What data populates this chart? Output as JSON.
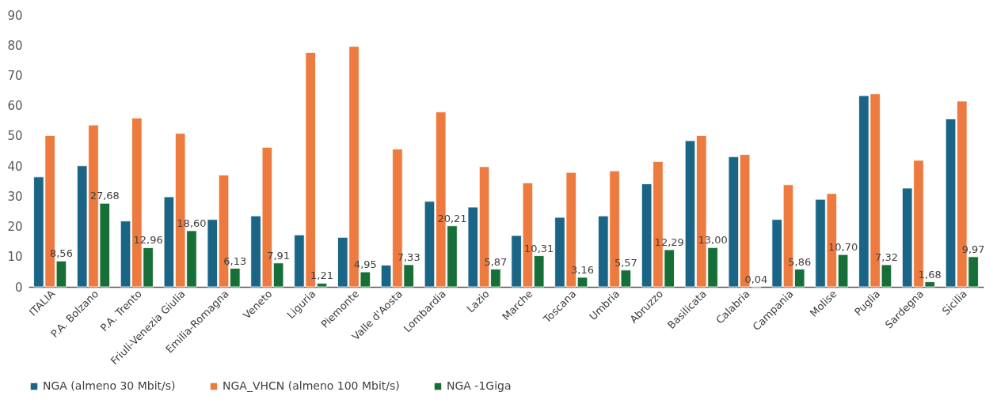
{
  "chart_data": {
    "type": "bar",
    "categories": [
      "ITALIA",
      "P.A. Bolzano",
      "P.A. Trento",
      "Friuli-Venezia Giulia",
      "Emilia-Romagna",
      "Veneto",
      "Liguria",
      "Piemonte",
      "Valle d'Aosta",
      "Lombardia",
      "Lazio",
      "Marche",
      "Toscana",
      "Umbria",
      "Abruzzo",
      "Basilicata",
      "Calabria",
      "Campania",
      "Molise",
      "Puglia",
      "Sardegna",
      "Sicilia"
    ],
    "series": [
      {
        "name": "NGA (almeno 30 Mbit/s)",
        "color": "#1a6585",
        "values": [
          36.4,
          40.1,
          21.8,
          29.8,
          22.3,
          23.5,
          17.2,
          16.4,
          7.2,
          28.3,
          26.4,
          17.0,
          23.0,
          23.5,
          34.1,
          48.4,
          43.1,
          22.3,
          29.0,
          63.3,
          32.7,
          55.6
        ]
      },
      {
        "name": "NGA_VHCN (almeno 100 Mbit/s)",
        "color": "#ed7a3e",
        "values": [
          50.1,
          53.6,
          55.9,
          50.8,
          37.0,
          46.2,
          77.6,
          79.6,
          45.6,
          57.9,
          39.8,
          34.4,
          37.9,
          38.4,
          41.5,
          50.1,
          43.8,
          33.8,
          30.9,
          63.9,
          41.9,
          61.5
        ]
      },
      {
        "name": "NGA -1Giga",
        "color": "#176f38",
        "values": [
          8.56,
          27.68,
          12.96,
          18.6,
          6.13,
          7.91,
          1.21,
          4.95,
          7.33,
          20.21,
          5.87,
          10.31,
          3.16,
          5.57,
          12.29,
          13.0,
          0.04,
          5.86,
          10.7,
          7.32,
          1.68,
          9.97
        ],
        "value_labels": [
          "8,56",
          "27,68",
          "12,96",
          "18,60",
          "6,13",
          "7,91",
          "1,21",
          "4,95",
          "7,33",
          "20,21",
          "5,87",
          "10,31",
          "3,16",
          "5,57",
          "12,29",
          "13,00",
          "0,04",
          "5,86",
          "10,70",
          "7,32",
          "1,68",
          "9,97"
        ]
      }
    ],
    "ylim": [
      0,
      90
    ],
    "yticks": [
      0,
      10,
      20,
      30,
      40,
      50,
      60,
      70,
      80,
      90
    ],
    "legend": "bottom"
  }
}
